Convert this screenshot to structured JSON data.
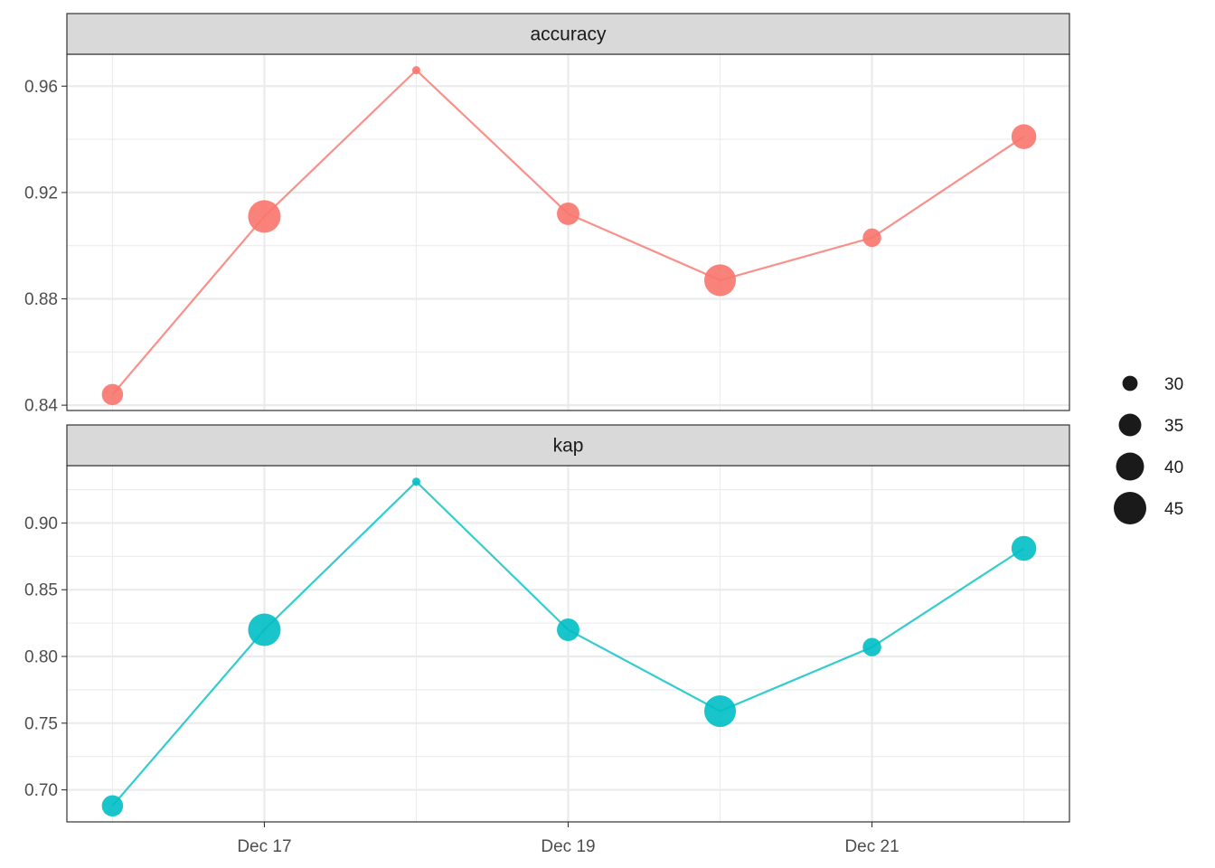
{
  "chart_data": {
    "type": "line",
    "title": "",
    "xlabel": "",
    "x_tick_labels": [
      "Dec 17",
      "Dec 19",
      "Dec 21"
    ],
    "x": [
      "Dec 16",
      "Dec 17",
      "Dec 18",
      "Dec 19",
      "Dec 20",
      "Dec 21",
      "Dec 22"
    ],
    "x_index": [
      16,
      17,
      18,
      19,
      20,
      21,
      22
    ],
    "x_tick_index": [
      17,
      19,
      21
    ],
    "xlim": [
      15.7,
      22.3
    ],
    "size_values": [
      34,
      45,
      27,
      35,
      44,
      32,
      37
    ],
    "size_legend": {
      "title": "",
      "entries": [
        {
          "value": 30,
          "label": "30"
        },
        {
          "value": 35,
          "label": "35"
        },
        {
          "value": 40,
          "label": "40"
        },
        {
          "value": 45,
          "label": "45"
        }
      ]
    },
    "panels": [
      {
        "strip": "accuracy",
        "color": "#F8766D",
        "values": [
          0.844,
          0.911,
          0.966,
          0.912,
          0.887,
          0.903,
          0.941
        ],
        "ylim": [
          0.838,
          0.972
        ],
        "y_ticks": [
          0.84,
          0.88,
          0.92,
          0.96
        ],
        "y_tick_labels": [
          "0.84",
          "0.88",
          "0.92",
          "0.96"
        ],
        "y_minor": [
          0.86,
          0.9,
          0.94
        ]
      },
      {
        "strip": "kap",
        "color": "#00BFC4",
        "values": [
          0.688,
          0.82,
          0.931,
          0.82,
          0.759,
          0.807,
          0.881
        ],
        "ylim": [
          0.676,
          0.943
        ],
        "y_ticks": [
          0.7,
          0.75,
          0.8,
          0.85,
          0.9
        ],
        "y_tick_labels": [
          "0.70",
          "0.75",
          "0.80",
          "0.85",
          "0.90"
        ],
        "y_minor": [
          0.725,
          0.775,
          0.825,
          0.875,
          0.925
        ]
      }
    ]
  }
}
